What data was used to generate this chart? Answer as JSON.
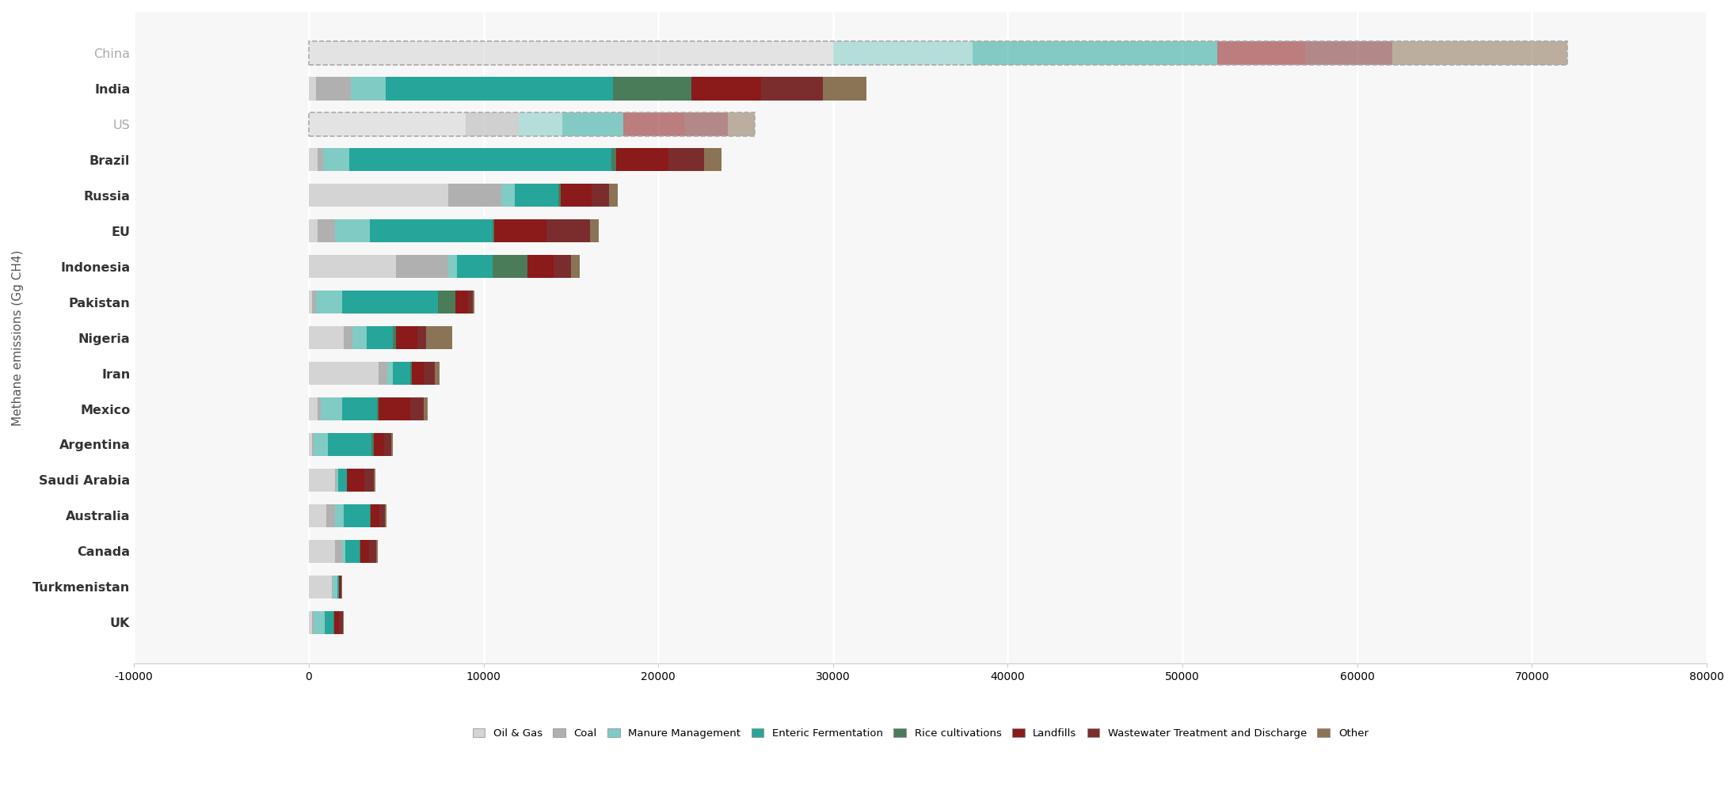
{
  "countries": [
    "China",
    "India",
    "US",
    "Brazil",
    "Russia",
    "EU",
    "Indonesia",
    "Pakistan",
    "Nigeria",
    "Iran",
    "Mexico",
    "Argentina",
    "Saudi Arabia",
    "Australia",
    "Canada",
    "Turkmenistan",
    "UK"
  ],
  "dashed_countries": [
    "China",
    "US"
  ],
  "categories": [
    "Oil & Gas",
    "Coal",
    "Manure Management",
    "Enteric Fermentation",
    "Rice cultivations",
    "Landfills",
    "Wastewater Treatment and Discharge",
    "Other"
  ],
  "colors": [
    "#d4d4d4",
    "#b8b8b8",
    "#80cbc4",
    "#26a69a",
    "#4a7c59",
    "#8b1a1a",
    "#7b2d2d",
    "#8b7355"
  ],
  "segments": {
    "China": [
      30000,
      0,
      8000,
      14000,
      0,
      5000,
      5000,
      10000
    ],
    "India": [
      400,
      2000,
      2000,
      13000,
      4500,
      4000,
      3500,
      2500
    ],
    "US": [
      9000,
      3000,
      2500,
      3500,
      0,
      3500,
      2500,
      1500
    ],
    "Brazil": [
      500,
      300,
      1500,
      15000,
      300,
      3000,
      2000,
      1000
    ],
    "Russia": [
      8000,
      3000,
      800,
      2500,
      100,
      1800,
      1000,
      500
    ],
    "EU": [
      500,
      1000,
      2000,
      7000,
      100,
      3000,
      2500,
      500
    ],
    "Indonesia": [
      5000,
      3000,
      500,
      2000,
      2000,
      1500,
      1000,
      500
    ],
    "Pakistan": [
      200,
      200,
      1500,
      5500,
      1000,
      700,
      300,
      100
    ],
    "Nigeria": [
      2000,
      500,
      800,
      1500,
      200,
      1200,
      500,
      1500
    ],
    "Iran": [
      4000,
      500,
      300,
      1000,
      100,
      700,
      600,
      300
    ],
    "Mexico": [
      500,
      200,
      1200,
      2000,
      100,
      1800,
      800,
      200
    ],
    "Argentina": [
      200,
      100,
      800,
      2500,
      100,
      600,
      400,
      100
    ],
    "Saudi Arabia": [
      1500,
      100,
      100,
      500,
      0,
      1000,
      500,
      100
    ],
    "Australia": [
      1000,
      500,
      500,
      1500,
      50,
      500,
      300,
      100
    ],
    "Canada": [
      1500,
      400,
      200,
      800,
      50,
      500,
      400,
      100
    ],
    "Turkmenistan": [
      1300,
      50,
      300,
      100,
      0,
      50,
      50,
      50
    ],
    "UK": [
      200,
      100,
      600,
      500,
      50,
      300,
      200,
      50
    ]
  },
  "xlim": [
    -10000,
    80000
  ],
  "xticks": [
    -10000,
    0,
    10000,
    20000,
    30000,
    40000,
    50000,
    60000,
    70000,
    80000
  ],
  "ylabel": "Methane emissions (Gg CH4)",
  "background_color": "#f7f7f7"
}
